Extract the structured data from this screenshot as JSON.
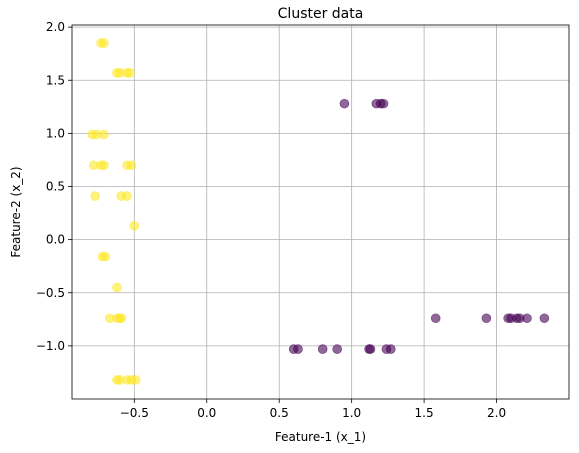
{
  "chart_data": {
    "type": "scatter",
    "title": "Cluster data",
    "xlabel": "Feature-1 (x_1)",
    "ylabel": "Feature-2 (x_2)",
    "xlim": [
      -0.93,
      2.5
    ],
    "ylim": [
      -1.5,
      2.02
    ],
    "xticks": [
      -0.5,
      0.0,
      0.5,
      1.0,
      1.5,
      2.0
    ],
    "yticks": [
      -1.0,
      -0.5,
      0.0,
      0.5,
      1.0,
      1.5,
      2.0
    ],
    "xtick_labels": [
      "−0.5",
      "0.0",
      "0.5",
      "1.0",
      "1.5",
      "2.0"
    ],
    "ytick_labels": [
      "−1.0",
      "−0.5",
      "0.0",
      "0.5",
      "1.0",
      "1.5",
      "2.0"
    ],
    "grid": true,
    "colors": {
      "cluster_0": "#440154",
      "cluster_1": "#fde725"
    },
    "point_alpha": 0.6,
    "series": [
      {
        "color_key": "cluster_0",
        "points": [
          [
            0.95,
            1.28
          ],
          [
            1.17,
            1.28
          ],
          [
            1.2,
            1.28
          ],
          [
            1.22,
            1.28
          ],
          [
            1.58,
            -0.74
          ],
          [
            1.93,
            -0.74
          ],
          [
            2.08,
            -0.74
          ],
          [
            2.1,
            -0.74
          ],
          [
            2.14,
            -0.74
          ],
          [
            2.16,
            -0.74
          ],
          [
            2.21,
            -0.74
          ],
          [
            2.33,
            -0.74
          ],
          [
            0.6,
            -1.03
          ],
          [
            0.63,
            -1.03
          ],
          [
            0.8,
            -1.03
          ],
          [
            0.9,
            -1.03
          ],
          [
            1.12,
            -1.03
          ],
          [
            1.13,
            -1.03
          ],
          [
            1.24,
            -1.03
          ],
          [
            1.27,
            -1.03
          ]
        ]
      },
      {
        "color_key": "cluster_1",
        "points": [
          [
            -0.73,
            1.85
          ],
          [
            -0.71,
            1.85
          ],
          [
            -0.62,
            1.57
          ],
          [
            -0.6,
            1.57
          ],
          [
            -0.55,
            1.57
          ],
          [
            -0.53,
            1.57
          ],
          [
            -0.79,
            0.99
          ],
          [
            -0.76,
            0.99
          ],
          [
            -0.71,
            0.99
          ],
          [
            -0.78,
            0.7
          ],
          [
            -0.73,
            0.7
          ],
          [
            -0.71,
            0.7
          ],
          [
            -0.55,
            0.7
          ],
          [
            -0.52,
            0.7
          ],
          [
            -0.77,
            0.41
          ],
          [
            -0.59,
            0.41
          ],
          [
            -0.55,
            0.41
          ],
          [
            -0.5,
            0.13
          ],
          [
            -0.72,
            -0.16
          ],
          [
            -0.7,
            -0.16
          ],
          [
            -0.62,
            -0.45
          ],
          [
            -0.67,
            -0.74
          ],
          [
            -0.62,
            -0.74
          ],
          [
            -0.6,
            -0.74
          ],
          [
            -0.59,
            -0.74
          ],
          [
            -0.62,
            -1.32
          ],
          [
            -0.6,
            -1.32
          ],
          [
            -0.55,
            -1.32
          ],
          [
            -0.52,
            -1.32
          ],
          [
            -0.49,
            -1.32
          ]
        ]
      }
    ]
  }
}
